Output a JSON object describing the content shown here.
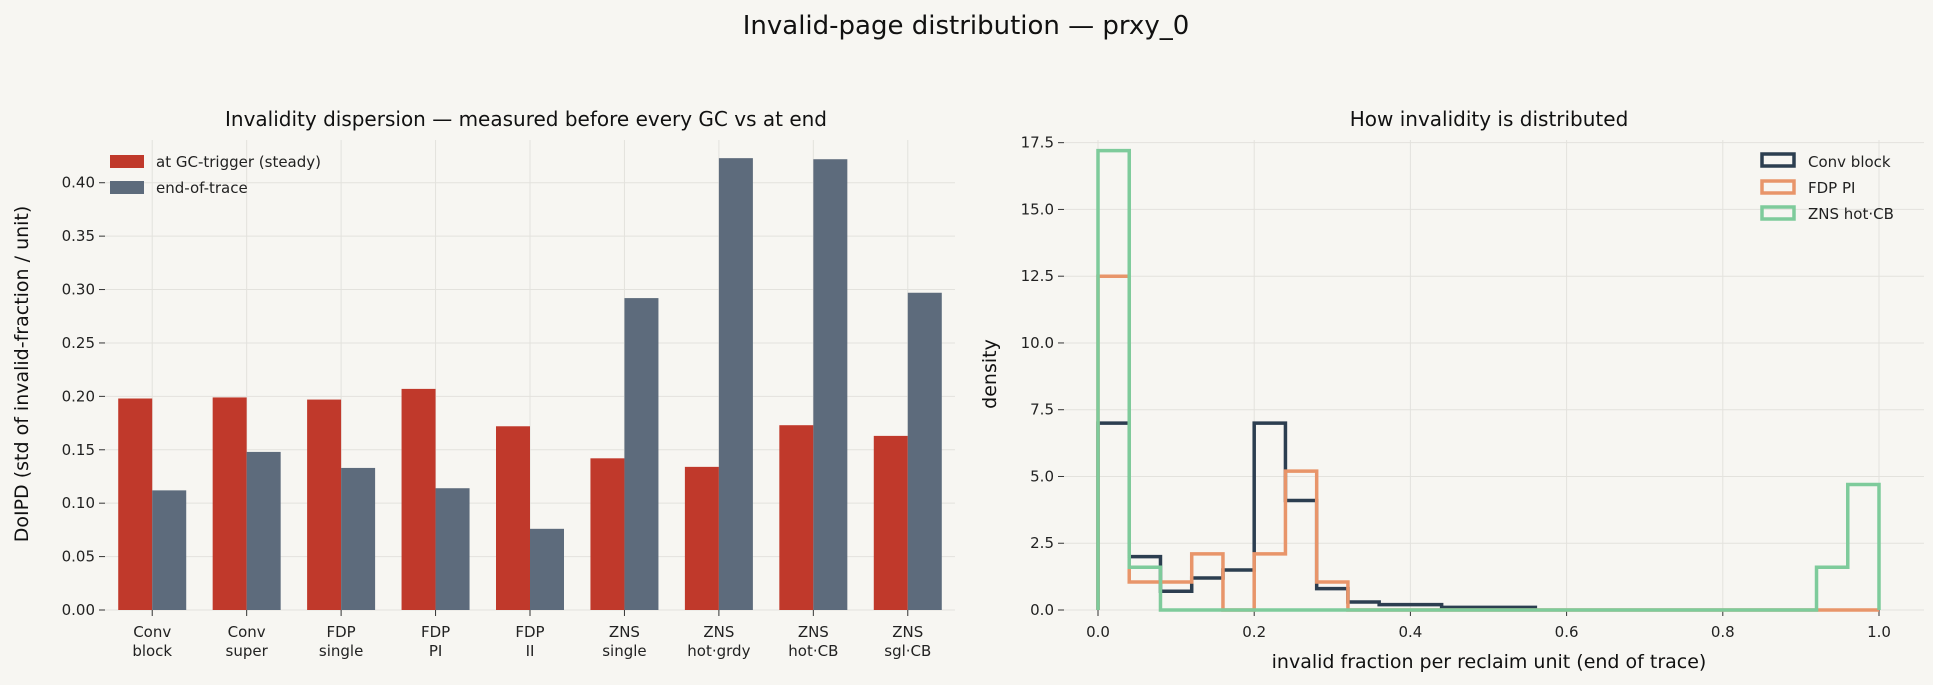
{
  "suptitle": "Invalid-page distribution — prxy_0",
  "colors": {
    "background": "#f7f6f2",
    "gc_trigger": "#c0392b",
    "end_of_trace": "#5d6b7c",
    "conv_block": "#2c3e50",
    "fdp_pi": "#e8956a",
    "zns_hot_cb": "#7ecb9b"
  },
  "chart_data": [
    {
      "type": "bar",
      "title": "Invalidity dispersion — measured before every GC vs at end",
      "xlabel": "",
      "ylabel": "DoIPD  (std of invalid-fraction / unit)",
      "ylim": [
        0,
        0.44
      ],
      "yticks": [
        "0.00",
        "0.05",
        "0.10",
        "0.15",
        "0.20",
        "0.25",
        "0.30",
        "0.35",
        "0.40"
      ],
      "categories": [
        [
          "Conv",
          "block"
        ],
        [
          "Conv",
          "super"
        ],
        [
          "FDP",
          "single"
        ],
        [
          "FDP",
          "PI"
        ],
        [
          "FDP",
          "II"
        ],
        [
          "ZNS",
          "single"
        ],
        [
          "ZNS",
          "hot·grdy"
        ],
        [
          "ZNS",
          "hot·CB"
        ],
        [
          "ZNS",
          "sgl·CB"
        ]
      ],
      "series": [
        {
          "name": "at GC-trigger (steady)",
          "values": [
            0.198,
            0.199,
            0.197,
            0.207,
            0.172,
            0.142,
            0.134,
            0.173,
            0.163
          ]
        },
        {
          "name": "end-of-trace",
          "values": [
            0.112,
            0.148,
            0.133,
            0.114,
            0.076,
            0.292,
            0.423,
            0.422,
            0.297
          ]
        }
      ],
      "grid": true,
      "legend": "top-left"
    },
    {
      "type": "histogram",
      "title": "How invalidity is distributed",
      "xlabel": "invalid fraction per reclaim unit (end of trace)",
      "ylabel": "density",
      "xlim": [
        0,
        1
      ],
      "ylim": [
        0,
        17.6
      ],
      "xticks": [
        "0.0",
        "0.2",
        "0.4",
        "0.6",
        "0.8",
        "1.0"
      ],
      "yticks": [
        "0.0",
        "2.5",
        "5.0",
        "7.5",
        "10.0",
        "12.5",
        "15.0",
        "17.5"
      ],
      "series": [
        {
          "name": "Conv block",
          "bins": [
            0,
            0.04,
            0.08,
            0.12,
            0.16,
            0.2,
            0.24,
            0.28,
            0.32,
            0.36,
            0.4,
            0.44,
            0.48,
            0.52,
            0.56
          ],
          "density": [
            7.0,
            2.0,
            0.7,
            1.2,
            1.5,
            7.0,
            4.1,
            0.8,
            0.3,
            0.2,
            0.2,
            0.1,
            0.1,
            0.1
          ]
        },
        {
          "name": "FDP PI",
          "bins": [
            0,
            0.04,
            0.08,
            0.12,
            0.16,
            0.2,
            0.24,
            0.28,
            0.32,
            1.0
          ],
          "density": [
            12.5,
            1.05,
            1.05,
            2.1,
            0.0,
            2.1,
            5.2,
            1.05,
            0.0
          ]
        },
        {
          "name": "ZNS hot·CB",
          "bins": [
            0,
            0.04,
            0.08,
            0.92,
            0.96,
            1.0
          ],
          "density": [
            17.2,
            1.6,
            0.0,
            1.6,
            4.7
          ]
        }
      ],
      "grid": true,
      "legend": "top-right"
    }
  ]
}
